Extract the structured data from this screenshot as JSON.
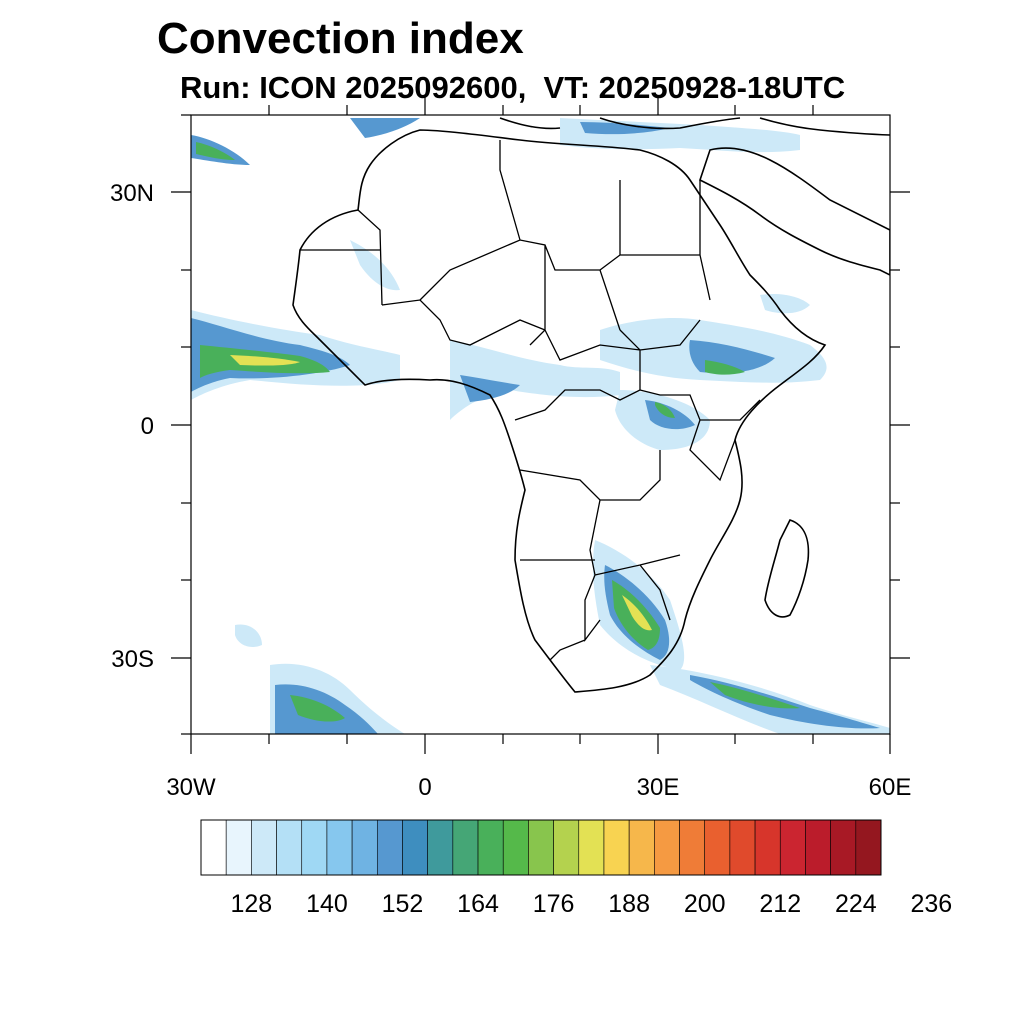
{
  "title": "Convection index",
  "subtitle": "Run: ICON 2025092600,  VT: 20250928-18UTC",
  "axes": {
    "lat_labels": [
      "30N",
      "0",
      "30S"
    ],
    "lon_labels": [
      "30W",
      "0",
      "30E",
      "60E"
    ]
  },
  "colorbar": {
    "tick_labels": [
      "128",
      "140",
      "152",
      "164",
      "176",
      "188",
      "200",
      "212",
      "224",
      "236"
    ],
    "colors": [
      "#ffffff",
      "#e8f5fd",
      "#cde9f8",
      "#b4e0f6",
      "#9fd8f4",
      "#86c7ee",
      "#6fb3e3",
      "#5698d0",
      "#3e8ebf",
      "#3f9a9c",
      "#45a676",
      "#49b05a",
      "#55b94a",
      "#88c54d",
      "#b4d24e",
      "#e3e154",
      "#f8d351",
      "#f6b74b",
      "#f59a42",
      "#ef7c37",
      "#e9602f",
      "#e04a2c",
      "#d7352b",
      "#cb2530",
      "#bb1c2b",
      "#a81925",
      "#94171f"
    ]
  },
  "map_colors": {
    "frame": "#000000",
    "coast": "#000000",
    "light": "#cde9f8",
    "blue": "#86c7ee",
    "mid": "#5698d0",
    "green": "#49b05a",
    "yellow": "#e3e154",
    "orange": "#f59a42"
  }
}
